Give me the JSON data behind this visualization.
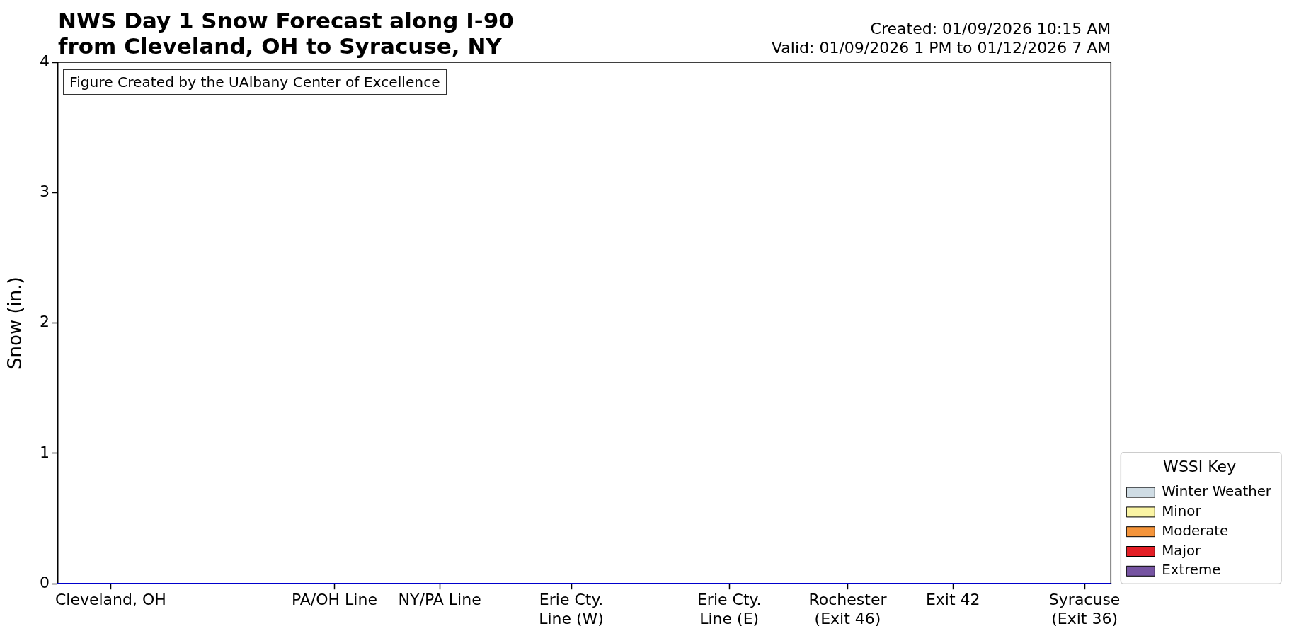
{
  "chart_data": {
    "type": "line",
    "title": "NWS Day 1 Snow Forecast along I-90\nfrom Cleveland, OH to Syracuse, NY",
    "subtitle": "Created: 01/09/2026 10:15 AM\nValid: 01/09/2026 1 PM to 01/12/2026 7 AM",
    "ylabel": "Snow (in.)",
    "legend_title": "WSSI Key",
    "annotations": [
      "Figure Created by the UAlbany Center of Excellence"
    ],
    "categories": [
      null,
      null,
      null,
      null,
      "Cleveland, OH",
      null,
      null,
      null,
      null,
      null,
      null,
      null,
      null,
      null,
      null,
      null,
      null,
      null,
      null,
      null,
      null,
      "PA/OH Line",
      null,
      null,
      null,
      null,
      null,
      null,
      null,
      "NY/PA Line",
      null,
      null,
      null,
      null,
      null,
      null,
      null,
      null,
      null,
      "Erie Cty.\nLine (W)",
      null,
      null,
      null,
      null,
      null,
      null,
      null,
      null,
      null,
      null,
      null,
      "Erie Cty.\nLine (E)",
      null,
      null,
      null,
      null,
      null,
      null,
      null,
      null,
      "Rochester\n(Exit 46)",
      null,
      null,
      null,
      null,
      null,
      null,
      null,
      "Exit 42",
      null,
      null,
      null,
      null,
      null,
      null,
      null,
      null,
      null,
      "Syracuse\n(Exit 36)",
      null,
      null
    ],
    "ylim": [
      0,
      4
    ],
    "yticks": [
      0,
      1,
      2,
      3,
      4
    ],
    "legend": "bottom right",
    "series": [
      {
        "color": "#0000cd",
        "values": [
          0,
          0,
          0,
          0,
          0,
          0,
          0,
          0,
          0,
          0,
          0,
          0,
          0,
          0,
          0,
          0,
          0,
          0,
          0,
          0,
          0,
          0,
          0,
          0,
          0,
          0,
          0,
          0,
          0,
          0,
          0,
          0,
          0,
          0,
          0,
          0,
          0,
          0,
          0,
          0,
          0,
          0,
          0,
          0,
          0,
          0,
          0,
          0,
          0,
          0,
          0,
          0,
          0,
          0,
          0,
          0,
          0,
          0,
          0,
          0,
          0,
          0,
          0,
          0,
          0,
          0,
          0,
          0,
          0,
          0,
          0,
          0,
          0,
          0,
          0,
          0,
          0,
          0,
          0,
          0,
          0
        ]
      },
      {
        "type": "area",
        "name": "Winter Weather",
        "color": "#cfdce4",
        "values": [
          null,
          null,
          null,
          null,
          null,
          null,
          null,
          null,
          null,
          null,
          null,
          null,
          null,
          null,
          null,
          null,
          null,
          null,
          null,
          null,
          null,
          null,
          null,
          null,
          null,
          null,
          null,
          null,
          null,
          null,
          null,
          null,
          null,
          null,
          null,
          null,
          null,
          null,
          null,
          null,
          null,
          null,
          null,
          null,
          null,
          null,
          null,
          null,
          null,
          null,
          null,
          null,
          null,
          null,
          null,
          null,
          null,
          null,
          null,
          null,
          null,
          null,
          null,
          null,
          null,
          null,
          null,
          null,
          null,
          null,
          null,
          null,
          null,
          null,
          null,
          null,
          null,
          null,
          null,
          null,
          null
        ]
      },
      {
        "type": "area",
        "name": "Minor",
        "color": "#faf4a4",
        "values": [
          null,
          null,
          null,
          null,
          null,
          null,
          null,
          null,
          null,
          null,
          null,
          null,
          null,
          null,
          null,
          null,
          null,
          null,
          null,
          null,
          null,
          null,
          null,
          null,
          null,
          null,
          null,
          null,
          null,
          null,
          null,
          null,
          null,
          null,
          null,
          null,
          null,
          null,
          null,
          null,
          null,
          null,
          null,
          null,
          null,
          null,
          null,
          null,
          null,
          null,
          null,
          null,
          null,
          null,
          null,
          null,
          null,
          null,
          null,
          null,
          null,
          null,
          null,
          null,
          null,
          null,
          null,
          null,
          null,
          null,
          null,
          null,
          null,
          null,
          null,
          null,
          null,
          null,
          null,
          null,
          null
        ]
      },
      {
        "type": "area",
        "name": "Moderate",
        "color": "#f4943a",
        "values": [
          null,
          null,
          null,
          null,
          null,
          null,
          null,
          null,
          null,
          null,
          null,
          null,
          null,
          null,
          null,
          null,
          null,
          null,
          null,
          null,
          null,
          null,
          null,
          null,
          null,
          null,
          null,
          null,
          null,
          null,
          null,
          null,
          null,
          null,
          null,
          null,
          null,
          null,
          null,
          null,
          null,
          null,
          null,
          null,
          null,
          null,
          null,
          null,
          null,
          null,
          null,
          null,
          null,
          null,
          null,
          null,
          null,
          null,
          null,
          null,
          null,
          null,
          null,
          null,
          null,
          null,
          null,
          null,
          null,
          null,
          null,
          null,
          null,
          null,
          null,
          null,
          null,
          null,
          null,
          null,
          null
        ]
      },
      {
        "type": "area",
        "name": "Major",
        "color": "#e31e25",
        "values": [
          null,
          null,
          null,
          null,
          null,
          null,
          null,
          null,
          null,
          null,
          null,
          null,
          null,
          null,
          null,
          null,
          null,
          null,
          null,
          null,
          null,
          null,
          null,
          null,
          null,
          null,
          null,
          null,
          null,
          null,
          null,
          null,
          null,
          null,
          null,
          null,
          null,
          null,
          null,
          null,
          null,
          null,
          null,
          null,
          null,
          null,
          null,
          null,
          null,
          null,
          null,
          null,
          null,
          null,
          null,
          null,
          null,
          null,
          null,
          null,
          null,
          null,
          null,
          null,
          null,
          null,
          null,
          null,
          null,
          null,
          null,
          null,
          null,
          null,
          null,
          null,
          null,
          null,
          null,
          null,
          null
        ]
      },
      {
        "type": "area",
        "name": "Extreme",
        "color": "#7654a2",
        "values": [
          null,
          null,
          null,
          null,
          null,
          null,
          null,
          null,
          null,
          null,
          null,
          null,
          null,
          null,
          null,
          null,
          null,
          null,
          null,
          null,
          null,
          null,
          null,
          null,
          null,
          null,
          null,
          null,
          null,
          null,
          null,
          null,
          null,
          null,
          null,
          null,
          null,
          null,
          null,
          null,
          null,
          null,
          null,
          null,
          null,
          null,
          null,
          null,
          null,
          null,
          null,
          null,
          null,
          null,
          null,
          null,
          null,
          null,
          null,
          null,
          null,
          null,
          null,
          null,
          null,
          null,
          null,
          null,
          null,
          null,
          null,
          null,
          null,
          null,
          null,
          null,
          null,
          null,
          null,
          null,
          null
        ]
      }
    ]
  }
}
